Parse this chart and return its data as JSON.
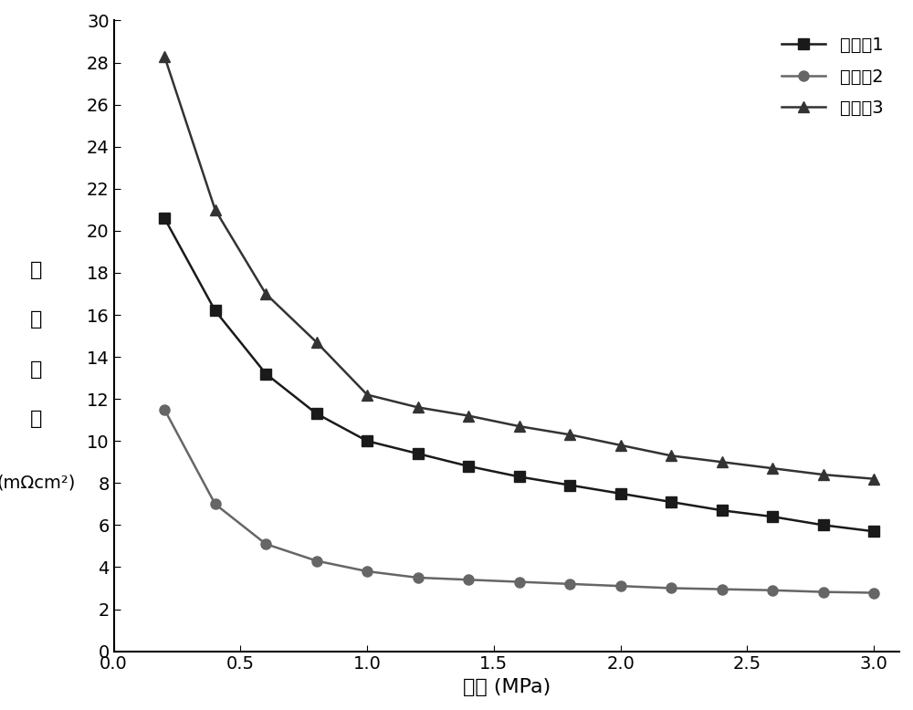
{
  "series1": {
    "label": "实施例1",
    "color": "#1a1a1a",
    "marker": "s",
    "markercolor": "#1a1a1a",
    "x": [
      0.2,
      0.4,
      0.6,
      0.8,
      1.0,
      1.2,
      1.4,
      1.6,
      1.8,
      2.0,
      2.2,
      2.4,
      2.6,
      2.8,
      3.0
    ],
    "y": [
      20.6,
      16.2,
      13.2,
      11.3,
      10.0,
      9.4,
      8.8,
      8.3,
      7.9,
      7.5,
      7.1,
      6.7,
      6.4,
      6.0,
      5.7
    ]
  },
  "series2": {
    "label": "实施例2",
    "color": "#666666",
    "marker": "o",
    "markercolor": "#666666",
    "x": [
      0.2,
      0.4,
      0.6,
      0.8,
      1.0,
      1.2,
      1.4,
      1.6,
      1.8,
      2.0,
      2.2,
      2.4,
      2.6,
      2.8,
      3.0
    ],
    "y": [
      11.5,
      7.0,
      5.1,
      4.3,
      3.8,
      3.5,
      3.4,
      3.3,
      3.2,
      3.1,
      3.0,
      2.95,
      2.9,
      2.82,
      2.78
    ]
  },
  "series3": {
    "label": "实施例3",
    "color": "#333333",
    "marker": "^",
    "markercolor": "#333333",
    "x": [
      0.2,
      0.4,
      0.6,
      0.8,
      1.0,
      1.2,
      1.4,
      1.6,
      1.8,
      2.0,
      2.2,
      2.4,
      2.6,
      2.8,
      3.0
    ],
    "y": [
      28.3,
      21.0,
      17.0,
      14.7,
      12.2,
      11.6,
      11.2,
      10.7,
      10.3,
      9.8,
      9.3,
      9.0,
      8.7,
      8.4,
      8.2
    ]
  },
  "xlabel": "压力 (MPa)",
  "ylabel": "接\n触\n电\n阻\n(mΩcm²)",
  "xlim": [
    0.0,
    3.1
  ],
  "ylim": [
    0,
    30
  ],
  "xticks": [
    0.0,
    0.5,
    1.0,
    1.5,
    2.0,
    2.5,
    3.0
  ],
  "yticks": [
    0,
    2,
    4,
    6,
    8,
    10,
    12,
    14,
    16,
    18,
    20,
    22,
    24,
    26,
    28,
    30
  ],
  "linewidth": 1.8,
  "markersize": 8,
  "background_color": "#ffffff",
  "legend_fontsize": 14,
  "axis_fontsize": 16,
  "tick_fontsize": 14
}
